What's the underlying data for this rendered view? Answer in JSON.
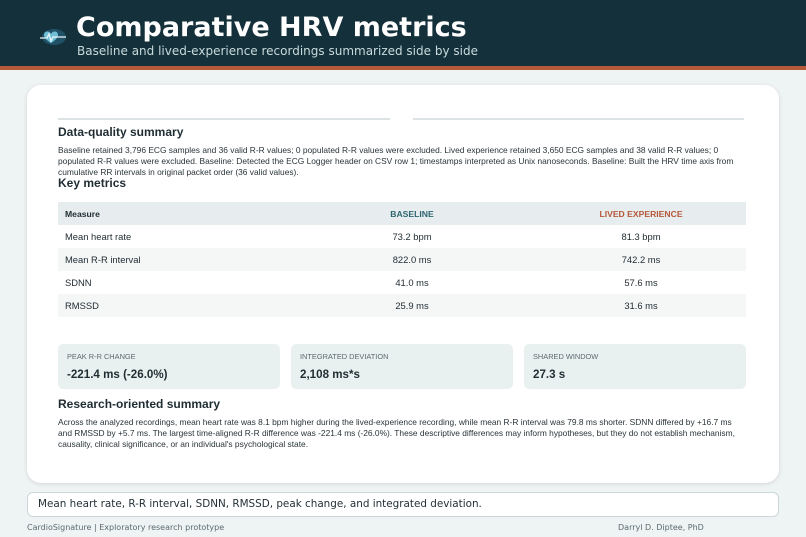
{
  "header": {
    "title": "Comparative HRV metrics",
    "subtitle": "Baseline and lived-experience recordings summarized side by side",
    "logo_icon": "heart-rate-logo-icon",
    "bg_color": "#14303a",
    "accent_color": "#b5583a"
  },
  "data_quality": {
    "title": "Data-quality summary",
    "text": "Baseline retained 3,796 ECG samples and 36 valid R-R values; 0 populated R-R values were excluded. Lived experience retained 3,650 ECG samples and 38 valid R-R values; 0 populated R-R values were excluded. Baseline: Detected the ECG Logger header on CSV row 1; timestamps interpreted as Unix nanoseconds. Baseline: Built the HRV time axis from cumulative RR intervals in original packet order (36 valid values)."
  },
  "key_metrics": {
    "title": "Key metrics",
    "columns": [
      "Measure",
      "BASELINE",
      "LIVED EXPERIENCE"
    ],
    "rows": [
      [
        "Mean heart rate",
        "73.2 bpm",
        "81.3 bpm"
      ],
      [
        "Mean R-R interval",
        "822.0 ms",
        "742.2 ms"
      ],
      [
        "SDNN",
        "41.0 ms",
        "57.6 ms"
      ],
      [
        "RMSSD",
        "25.9 ms",
        "31.6 ms"
      ]
    ],
    "baseline_color": "#2e6670",
    "lived_color": "#b5583a"
  },
  "stats": [
    {
      "label": "PEAK R-R CHANGE",
      "value": "-221.4 ms (-26.0%)"
    },
    {
      "label": "INTEGRATED DEVIATION",
      "value": "2,108 ms*s"
    },
    {
      "label": "SHARED WINDOW",
      "value": "27.3 s"
    }
  ],
  "research_summary": {
    "title": "Research-oriented summary",
    "text": "Across the analyzed recordings, mean heart rate was 8.1 bpm higher during the lived-experience recording, while mean R-R interval was 79.8 ms shorter. SDNN differed by +16.7 ms and RMSSD by +5.7 ms. The largest time-aligned R-R difference was -221.4 ms (-26.0%). These descriptive differences may inform hypotheses, but they do not establish mechanism, causality, clinical significance, or an individual's psychological state."
  },
  "bottom_field": {
    "value": "Mean heart rate, R-R interval, SDNN, RMSSD, peak change, and integrated deviation."
  },
  "footer": {
    "left": "CardioSignature | Exploratory research prototype",
    "right": "Darryl D. Diptee, PhD"
  }
}
